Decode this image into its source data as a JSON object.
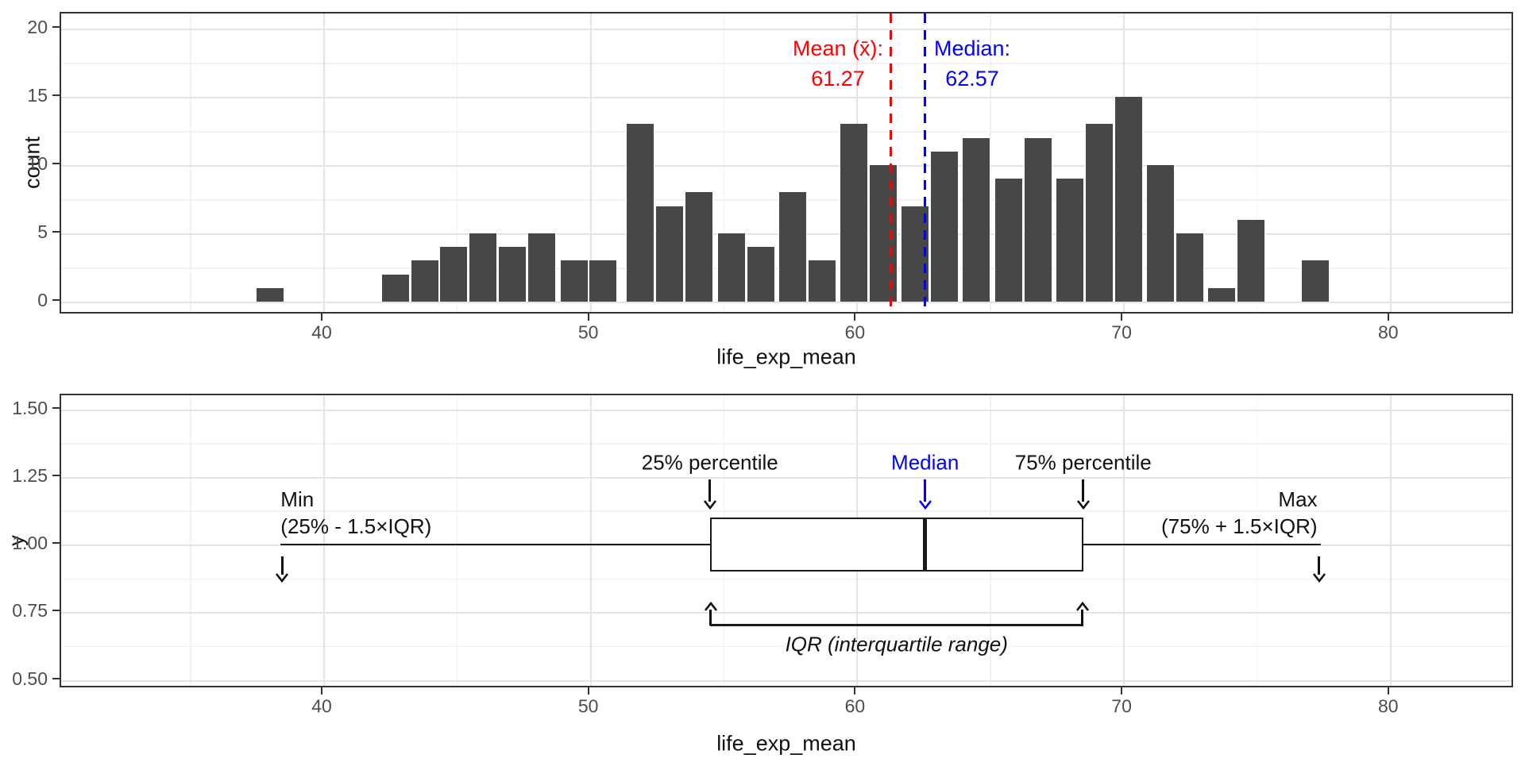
{
  "chart_data": [
    {
      "type": "histogram",
      "xlabel": "life_exp_mean",
      "ylabel": "count",
      "x_ticks": [
        40,
        50,
        60,
        70,
        80
      ],
      "y_ticks": [
        0,
        5,
        10,
        15,
        20
      ],
      "x_minor": [
        35,
        45,
        55,
        65,
        75
      ],
      "y_minor": [
        2.5,
        7.5,
        12.5,
        17.5
      ],
      "xlim": [
        30.2,
        84.7
      ],
      "ylim": [
        -1,
        21
      ],
      "grid": true,
      "bar_color": "#474747",
      "binwidth": 1.13,
      "bins": [
        {
          "x": 38.0,
          "count": 1
        },
        {
          "x": 42.7,
          "count": 2
        },
        {
          "x": 43.8,
          "count": 3
        },
        {
          "x": 44.9,
          "count": 4
        },
        {
          "x": 46.0,
          "count": 5
        },
        {
          "x": 47.1,
          "count": 4
        },
        {
          "x": 48.2,
          "count": 5
        },
        {
          "x": 49.4,
          "count": 3
        },
        {
          "x": 50.5,
          "count": 3
        },
        {
          "x": 51.9,
          "count": 13
        },
        {
          "x": 53.0,
          "count": 7
        },
        {
          "x": 54.1,
          "count": 8
        },
        {
          "x": 55.3,
          "count": 5
        },
        {
          "x": 56.4,
          "count": 4
        },
        {
          "x": 57.6,
          "count": 8
        },
        {
          "x": 58.7,
          "count": 3
        },
        {
          "x": 59.9,
          "count": 13
        },
        {
          "x": 61.0,
          "count": 10
        },
        {
          "x": 62.2,
          "count": 7
        },
        {
          "x": 63.3,
          "count": 11
        },
        {
          "x": 64.5,
          "count": 12
        },
        {
          "x": 65.7,
          "count": 9
        },
        {
          "x": 66.8,
          "count": 12
        },
        {
          "x": 68.0,
          "count": 9
        },
        {
          "x": 69.1,
          "count": 13
        },
        {
          "x": 70.2,
          "count": 15
        },
        {
          "x": 71.4,
          "count": 10
        },
        {
          "x": 72.5,
          "count": 5
        },
        {
          "x": 73.7,
          "count": 1
        },
        {
          "x": 74.8,
          "count": 6
        },
        {
          "x": 77.2,
          "count": 3
        }
      ],
      "mean_line": {
        "value": 61.27,
        "color": "#FF0000",
        "label": "Mean (x̄):",
        "value_label": "61.27"
      },
      "median_line": {
        "value": 62.57,
        "color": "#0000FF",
        "label": "Median:",
        "value_label": "62.57"
      }
    },
    {
      "type": "boxplot",
      "xlabel": "life_exp_mean",
      "ylabel": "y",
      "x_ticks": [
        40,
        50,
        60,
        70,
        80
      ],
      "y_ticks": [
        "0.50",
        "0.75",
        "1.00",
        "1.25",
        "1.50"
      ],
      "y_tick_values": [
        0.5,
        0.75,
        1.0,
        1.25,
        1.5
      ],
      "x_minor": [
        35,
        45,
        55,
        65,
        75
      ],
      "y_minor": [
        0.625,
        0.875,
        1.125,
        1.375
      ],
      "xlim": [
        30.2,
        84.7
      ],
      "ylim": [
        0.45,
        1.56
      ],
      "grid": true,
      "stats": {
        "whisker_min": 38.4,
        "q1": 54.5,
        "median": 62.57,
        "q3": 68.5,
        "whisker_max": 77.4,
        "box_y_center": 1.0,
        "box_half_height": 0.1
      },
      "annotations": {
        "q1_label": "25% percentile",
        "median_label": "Median",
        "median_color": "#0000FF",
        "q3_label": "75% percentile",
        "min_label_line1": "Min",
        "min_label_line2": "(25% - 1.5×IQR)",
        "max_label_line1": "Max",
        "max_label_line2": "(75% + 1.5×IQR)",
        "iqr_label": "IQR (interquartile range)"
      }
    }
  ]
}
